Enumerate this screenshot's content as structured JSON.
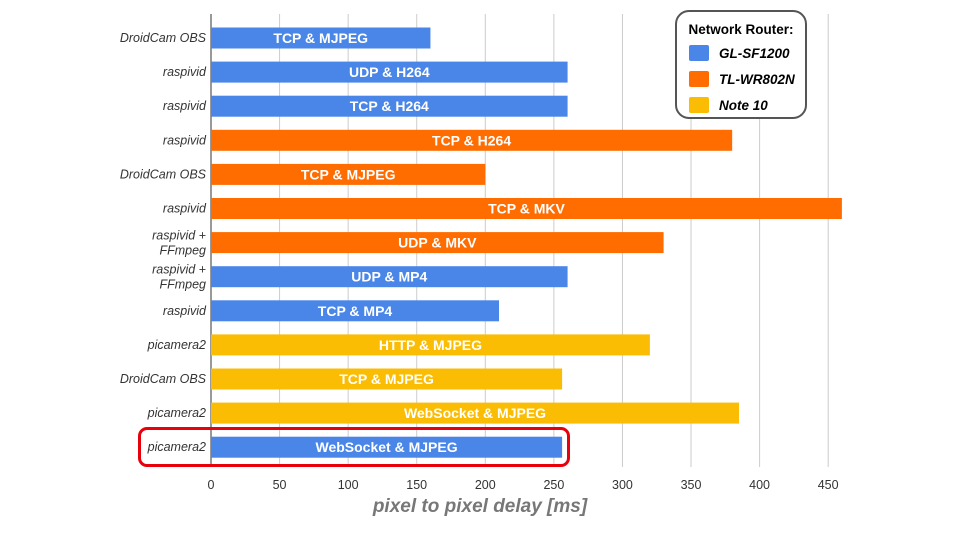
{
  "chart_data": {
    "type": "bar",
    "orientation": "horizontal",
    "title": "",
    "xlabel": "pixel to pixel delay [ms]",
    "ylabel": "",
    "xlim": [
      0,
      460
    ],
    "xticks": [
      0,
      50,
      100,
      150,
      200,
      250,
      300,
      350,
      400,
      450
    ],
    "grid": true,
    "legend": {
      "title": "Network Router:",
      "placement": "top-right",
      "entries": [
        {
          "name": "GL-SF1200",
          "color": "#4a86e8"
        },
        {
          "name": "TL-WR802N",
          "color": "#ff6d01"
        },
        {
          "name": "Note 10",
          "color": "#fbbc04"
        }
      ]
    },
    "bars": [
      {
        "category": "DroidCam OBS",
        "label": "TCP & MJPEG",
        "value": 160,
        "router": "GL-SF1200"
      },
      {
        "category": "raspivid",
        "label": "UDP & H264",
        "value": 260,
        "router": "GL-SF1200"
      },
      {
        "category": "raspivid",
        "label": "TCP & H264",
        "value": 260,
        "router": "GL-SF1200"
      },
      {
        "category": "raspivid",
        "label": "TCP & H264",
        "value": 380,
        "router": "TL-WR802N"
      },
      {
        "category": "DroidCam OBS",
        "label": "TCP & MJPEG",
        "value": 200,
        "router": "TL-WR802N"
      },
      {
        "category": "raspivid",
        "label": "TCP & MKV",
        "value": 460,
        "router": "TL-WR802N"
      },
      {
        "category": "raspivid + FFmpeg",
        "label": "UDP & MKV",
        "value": 330,
        "router": "TL-WR802N"
      },
      {
        "category": "raspivid + FFmpeg",
        "label": "UDP & MP4",
        "value": 260,
        "router": "GL-SF1200"
      },
      {
        "category": "raspivid",
        "label": "TCP & MP4",
        "value": 210,
        "router": "GL-SF1200"
      },
      {
        "category": "picamera2",
        "label": "HTTP & MJPEG",
        "value": 320,
        "router": "Note 10"
      },
      {
        "category": "DroidCam OBS",
        "label": "TCP & MJPEG",
        "value": 256,
        "router": "Note 10"
      },
      {
        "category": "picamera2",
        "label": "WebSocket & MJPEG",
        "value": 385,
        "router": "Note 10"
      },
      {
        "category": "picamera2",
        "label": "WebSocket & MJPEG",
        "value": 256,
        "router": "GL-SF1200",
        "highlighted": true
      }
    ]
  }
}
